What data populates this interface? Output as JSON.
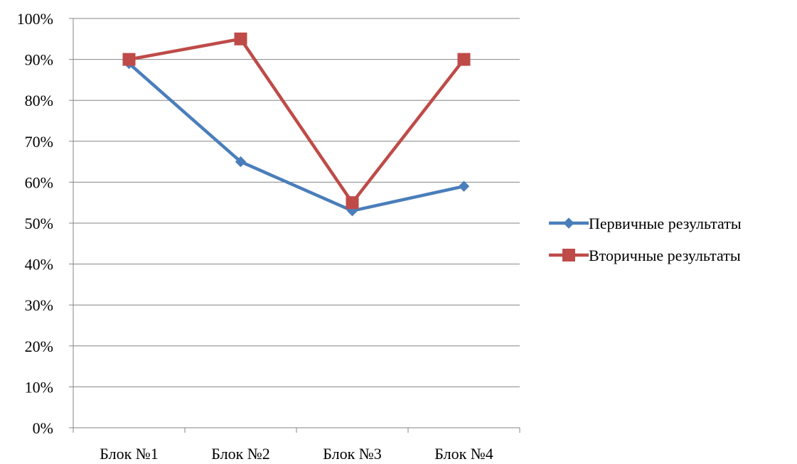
{
  "chart_data": {
    "type": "line",
    "categories": [
      "Блок №1",
      "Блок №2",
      "Блок №3",
      "Блок №4"
    ],
    "ylim": [
      0,
      100
    ],
    "yticks": [
      "0%",
      "10%",
      "20%",
      "30%",
      "40%",
      "50%",
      "60%",
      "70%",
      "80%",
      "90%",
      "100%"
    ],
    "ytick_values": [
      0,
      10,
      20,
      30,
      40,
      50,
      60,
      70,
      80,
      90,
      100
    ],
    "grid": true,
    "legend_position": "right",
    "series": [
      {
        "name": "Первичные результаты",
        "values": [
          89,
          65,
          53,
          59
        ],
        "color": "#4a7ebb",
        "marker": "diamond"
      },
      {
        "name": "Вторичные результаты",
        "values": [
          90,
          95,
          55,
          90
        ],
        "color": "#be4b48",
        "marker": "square"
      }
    ]
  }
}
